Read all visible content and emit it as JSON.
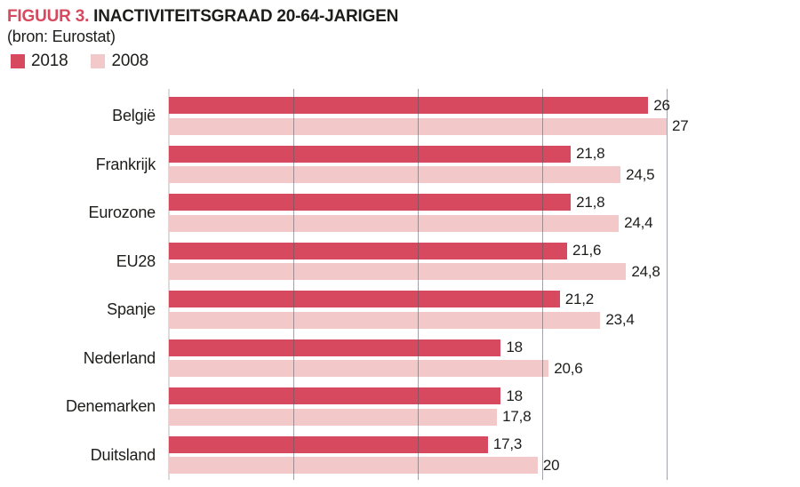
{
  "title": {
    "prefix": "FIGUUR 3.",
    "text": "INACTIVITEITSGRAAD 20-64-JARIGEN",
    "subtitle": "(bron: Eurostat)"
  },
  "colors": {
    "accent": "#d6495e",
    "series_2018": "#d6495e",
    "series_2008": "#f3c8c8",
    "text": "#1d1d1b"
  },
  "chart_data": {
    "type": "bar",
    "orientation": "horizontal",
    "title": "FIGUUR 3. INACTIVITEITSGRAAD 20-64-JARIGEN",
    "source": "(bron: Eurostat)",
    "categories": [
      "België",
      "Frankrijk",
      "Eurozone",
      "EU28",
      "Spanje",
      "Nederland",
      "Denemarken",
      "Duitsland"
    ],
    "series": [
      {
        "name": "2018",
        "color": "#d6495e",
        "values": [
          26,
          21.8,
          21.8,
          21.6,
          21.2,
          18,
          18,
          17.3
        ],
        "labels": [
          "26",
          "21,8",
          "21,8",
          "21,6",
          "21,2",
          "18",
          "18",
          "17,3"
        ]
      },
      {
        "name": "2008",
        "color": "#f3c8c8",
        "values": [
          27,
          24.5,
          24.4,
          24.8,
          23.4,
          20.6,
          17.8,
          20
        ],
        "labels": [
          "27",
          "24,5",
          "24,4",
          "24,8",
          "23,4",
          "20,6",
          "17,8",
          "20"
        ]
      }
    ],
    "xlim": [
      0,
      27
    ],
    "gridline_count": 5,
    "grid": true,
    "axis_tick_labels_shown": false,
    "value_labels_shown": true,
    "legend_position": "top-left"
  }
}
